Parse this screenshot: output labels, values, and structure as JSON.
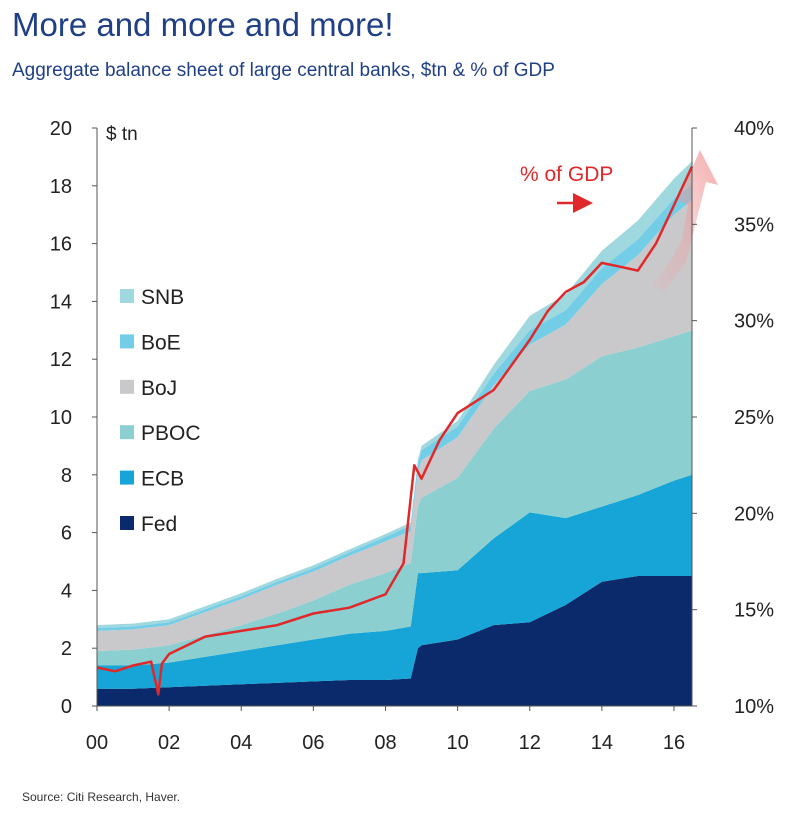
{
  "header": {
    "title": "More and more and more!",
    "subtitle": "Aggregate balance sheet of large central banks, $tn & % of GDP"
  },
  "source": "Source: Citi Research, Haver.",
  "colors": {
    "Fed": "#0a2a6b",
    "ECB": "#16a5d6",
    "PBOC": "#8ccfd1",
    "BoJ": "#c9c9cc",
    "BoE": "#74cde6",
    "SNB": "#9fd8de",
    "pct_line": "#e0282b"
  },
  "chart_data": {
    "type": "area",
    "stacked": true,
    "x_tick_labels": [
      "00",
      "02",
      "04",
      "06",
      "08",
      "10",
      "12",
      "14",
      "16"
    ],
    "y_left": {
      "unit": "$ tn",
      "ylim": [
        0,
        20
      ],
      "ticks": [
        "0",
        "2",
        "4",
        "6",
        "8",
        "10",
        "12",
        "14",
        "16",
        "18",
        "20"
      ]
    },
    "y_right": {
      "ylim": [
        10,
        40
      ],
      "ticks": [
        "10%",
        "15%",
        "20%",
        "25%",
        "30%",
        "35%",
        "40%"
      ]
    },
    "x": [
      2000,
      2001,
      2002,
      2003,
      2004,
      2005,
      2006,
      2007,
      2008,
      2008.7,
      2008.9,
      2009,
      2010,
      2011,
      2012,
      2013,
      2014,
      2015,
      2016,
      2016.5
    ],
    "series": [
      {
        "name": "Fed",
        "values": [
          0.6,
          0.6,
          0.65,
          0.7,
          0.75,
          0.8,
          0.85,
          0.9,
          0.9,
          0.95,
          2.0,
          2.1,
          2.3,
          2.8,
          2.9,
          3.5,
          4.3,
          4.5,
          4.5,
          4.5
        ]
      },
      {
        "name": "ECB",
        "values": [
          0.8,
          0.8,
          0.85,
          1.0,
          1.15,
          1.3,
          1.45,
          1.6,
          1.7,
          1.8,
          2.6,
          2.5,
          2.4,
          3.0,
          3.8,
          3.0,
          2.6,
          2.8,
          3.3,
          3.5
        ]
      },
      {
        "name": "PBOC",
        "values": [
          0.5,
          0.55,
          0.6,
          0.75,
          0.9,
          1.1,
          1.35,
          1.7,
          2.0,
          2.2,
          2.3,
          2.6,
          3.2,
          3.8,
          4.2,
          4.8,
          5.2,
          5.1,
          5.0,
          5.0
        ]
      },
      {
        "name": "BoJ",
        "values": [
          0.7,
          0.7,
          0.7,
          0.8,
          0.9,
          1.0,
          1.0,
          1.0,
          1.1,
          1.1,
          1.2,
          1.3,
          1.4,
          1.5,
          1.6,
          1.9,
          2.5,
          3.2,
          4.2,
          4.5
        ]
      },
      {
        "name": "BoE",
        "values": [
          0.1,
          0.1,
          0.1,
          0.1,
          0.1,
          0.1,
          0.12,
          0.12,
          0.15,
          0.2,
          0.3,
          0.35,
          0.37,
          0.4,
          0.5,
          0.5,
          0.55,
          0.55,
          0.55,
          0.55
        ]
      },
      {
        "name": "SNB",
        "values": [
          0.1,
          0.1,
          0.1,
          0.1,
          0.1,
          0.1,
          0.1,
          0.1,
          0.1,
          0.1,
          0.12,
          0.15,
          0.2,
          0.3,
          0.5,
          0.55,
          0.6,
          0.65,
          0.7,
          0.8
        ]
      }
    ],
    "pct_of_gdp": {
      "name": "% of GDP",
      "x": [
        2000,
        2000.5,
        2001,
        2001.5,
        2001.7,
        2001.8,
        2002,
        2003,
        2004,
        2005,
        2006,
        2007,
        2008,
        2008.5,
        2008.8,
        2009,
        2009.5,
        2010,
        2011,
        2012,
        2012.5,
        2013,
        2013.5,
        2014,
        2014.5,
        2015,
        2015.5,
        2016,
        2016.5
      ],
      "values": [
        12.0,
        11.8,
        12.1,
        12.3,
        10.6,
        12.2,
        12.7,
        13.6,
        13.9,
        14.2,
        14.8,
        15.1,
        15.8,
        17.4,
        22.5,
        21.8,
        23.8,
        25.2,
        26.4,
        29.0,
        30.5,
        31.5,
        32.0,
        33.0,
        32.8,
        32.6,
        34.0,
        36.0,
        38.0
      ]
    },
    "annotation": "% of GDP",
    "legend_position": "left",
    "grid": false
  }
}
